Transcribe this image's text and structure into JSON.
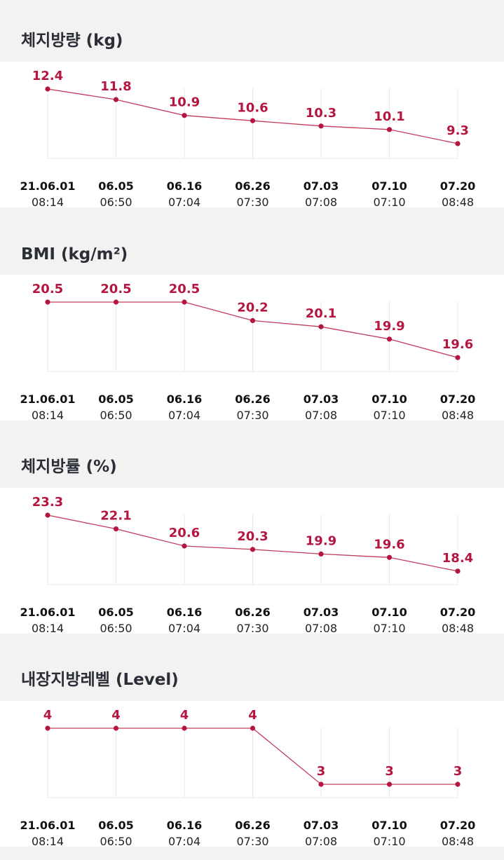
{
  "x_labels": [
    {
      "date": "21.06.01",
      "time": "08:14"
    },
    {
      "date": "06.05",
      "time": "06:50"
    },
    {
      "date": "06.16",
      "time": "07:04"
    },
    {
      "date": "06.26",
      "time": "07:30"
    },
    {
      "date": "07.03",
      "time": "07:08"
    },
    {
      "date": "07.10",
      "time": "07:10"
    },
    {
      "date": "07.20",
      "time": "08:48"
    }
  ],
  "colors": {
    "line": "#c23a5a",
    "point": "#b5163f",
    "label": "#b5163f",
    "grid": "#e8e8e8"
  },
  "chart_data": [
    {
      "type": "line",
      "title": "체지방량 (kg)",
      "categories": [
        "21.06.01 08:14",
        "06.05 06:50",
        "06.16 07:04",
        "06.26 07:30",
        "07.03 07:08",
        "07.10 07:10",
        "07.20 08:48"
      ],
      "values": [
        12.4,
        11.8,
        10.9,
        10.6,
        10.3,
        10.1,
        9.3
      ],
      "value_labels": [
        "12.4",
        "11.8",
        "10.9",
        "10.6",
        "10.3",
        "10.1",
        "9.3"
      ],
      "ylim": [
        8.9,
        12.4
      ]
    },
    {
      "type": "line",
      "title": "BMI (kg/m²)",
      "categories": [
        "21.06.01 08:14",
        "06.05 06:50",
        "06.16 07:04",
        "06.26 07:30",
        "07.03 07:08",
        "07.10 07:10",
        "07.20 08:48"
      ],
      "values": [
        20.5,
        20.5,
        20.5,
        20.2,
        20.1,
        19.9,
        19.6
      ],
      "value_labels": [
        "20.5",
        "20.5",
        "20.5",
        "20.2",
        "20.1",
        "19.9",
        "19.6"
      ],
      "ylim": [
        19.5,
        20.5
      ]
    },
    {
      "type": "line",
      "title": "체지방률 (%)",
      "categories": [
        "21.06.01 08:14",
        "06.05 06:50",
        "06.16 07:04",
        "06.26 07:30",
        "07.03 07:08",
        "07.10 07:10",
        "07.20 08:48"
      ],
      "values": [
        23.3,
        22.1,
        20.6,
        20.3,
        19.9,
        19.6,
        18.4
      ],
      "value_labels": [
        "23.3",
        "22.1",
        "20.6",
        "20.3",
        "19.9",
        "19.6",
        "18.4"
      ],
      "ylim": [
        17.9,
        23.3
      ]
    },
    {
      "type": "line",
      "title": "내장지방레벨 (Level)",
      "categories": [
        "21.06.01 08:14",
        "06.05 06:50",
        "06.16 07:04",
        "06.26 07:30",
        "07.03 07:08",
        "07.10 07:10",
        "07.20 08:48"
      ],
      "values": [
        4,
        4,
        4,
        4,
        3,
        3,
        3
      ],
      "value_labels": [
        "4",
        "4",
        "4",
        "4",
        "3",
        "3",
        "3"
      ],
      "ylim": [
        2.9,
        4
      ]
    }
  ]
}
